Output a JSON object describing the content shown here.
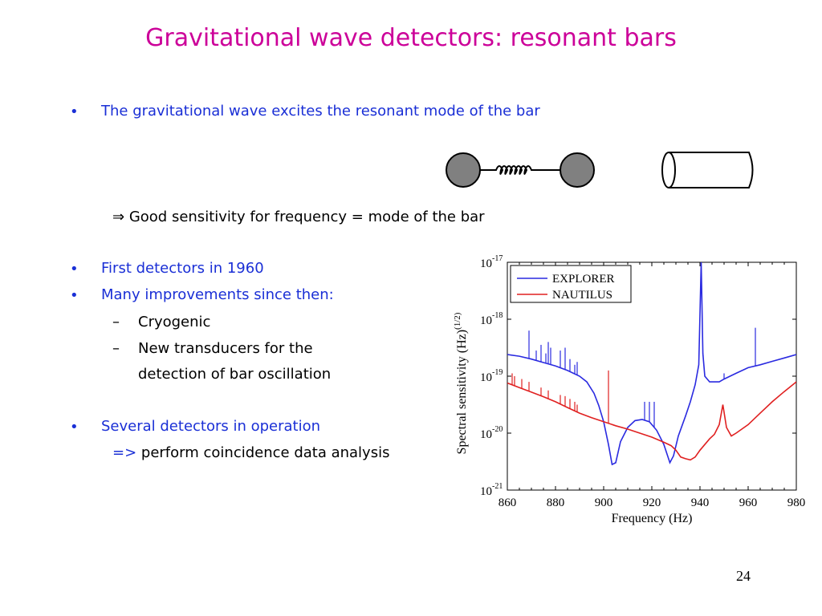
{
  "slide": {
    "title": "Gravitational wave detectors: resonant bars",
    "bullet_char": "•",
    "dash_char": "–",
    "implies_char": "⇒",
    "bullet1": "The gravitational wave excites the resonant mode of the bar",
    "implication": "Good sensitivity for frequency = mode of the bar",
    "bullet2": "First detectors in 1960",
    "bullet3": "Many improvements since then:",
    "sub1": "Cryogenic",
    "sub2_line1": "New transducers for the",
    "sub2_line2": "detection of bar oscillation",
    "bullet4": "Several detectors in operation",
    "arrow": "=>",
    "bullet4_sub": "perform coincidence data analysis",
    "page_number": "24"
  },
  "illustration": {
    "mass_spring": "two-masses-with-spring",
    "bar": "cylinder-bar",
    "mass_color": "#808080"
  },
  "chart_data": {
    "type": "line",
    "xlabel": "Frequency (Hz)",
    "ylabel": "Spectral sensitivity (Hz)",
    "ylabel_exp": "(1/2)",
    "x_ticks": [
      "860",
      "880",
      "900",
      "920",
      "940",
      "960",
      "980"
    ],
    "y_ticks": [
      {
        "base": "10",
        "exp": "-17"
      },
      {
        "base": "10",
        "exp": "-18"
      },
      {
        "base": "10",
        "exp": "-19"
      },
      {
        "base": "10",
        "exp": "-20"
      },
      {
        "base": "10",
        "exp": "-21"
      }
    ],
    "xlim": [
      860,
      980
    ],
    "ylim_log10": [
      -21,
      -17
    ],
    "scale_y": "log",
    "legend_position": "top-left",
    "series": [
      {
        "name": "EXPLORER",
        "color": "#2a2ae0",
        "points": [
          [
            860,
            -18.62
          ],
          [
            865,
            -18.65
          ],
          [
            870,
            -18.7
          ],
          [
            875,
            -18.76
          ],
          [
            880,
            -18.82
          ],
          [
            885,
            -18.9
          ],
          [
            890,
            -19.0
          ],
          [
            893,
            -19.1
          ],
          [
            896,
            -19.3
          ],
          [
            898,
            -19.52
          ],
          [
            900,
            -19.8
          ],
          [
            902,
            -20.2
          ],
          [
            903.5,
            -20.55
          ],
          [
            905,
            -20.52
          ],
          [
            907,
            -20.15
          ],
          [
            910,
            -19.9
          ],
          [
            913,
            -19.78
          ],
          [
            916,
            -19.76
          ],
          [
            919,
            -19.8
          ],
          [
            922,
            -19.95
          ],
          [
            925,
            -20.2
          ],
          [
            927.5,
            -20.52
          ],
          [
            929,
            -20.4
          ],
          [
            931,
            -20.05
          ],
          [
            934,
            -19.7
          ],
          [
            936,
            -19.45
          ],
          [
            938,
            -19.15
          ],
          [
            939.5,
            -18.8
          ],
          [
            940.5,
            -17.0
          ],
          [
            941.2,
            -18.6
          ],
          [
            942,
            -19.0
          ],
          [
            944,
            -19.1
          ],
          [
            946,
            -19.1
          ],
          [
            948,
            -19.1
          ],
          [
            950,
            -19.05
          ],
          [
            955,
            -18.95
          ],
          [
            960,
            -18.85
          ],
          [
            965,
            -18.8
          ],
          [
            970,
            -18.74
          ],
          [
            975,
            -18.68
          ],
          [
            980,
            -18.62
          ]
        ],
        "spikes": [
          [
            869,
            -18.2
          ],
          [
            872,
            -18.55
          ],
          [
            874,
            -18.45
          ],
          [
            876,
            -18.6
          ],
          [
            877,
            -18.4
          ],
          [
            878,
            -18.5
          ],
          [
            882,
            -18.55
          ],
          [
            884,
            -18.5
          ],
          [
            886,
            -18.7
          ],
          [
            888,
            -18.8
          ],
          [
            889,
            -18.75
          ],
          [
            917,
            -19.45
          ],
          [
            919,
            -19.45
          ],
          [
            921,
            -19.45
          ],
          [
            950,
            -18.95
          ],
          [
            963,
            -18.15
          ]
        ]
      },
      {
        "name": "NAUTILUS",
        "color": "#e02020",
        "points": [
          [
            860,
            -19.12
          ],
          [
            865,
            -19.2
          ],
          [
            870,
            -19.28
          ],
          [
            875,
            -19.36
          ],
          [
            880,
            -19.45
          ],
          [
            885,
            -19.55
          ],
          [
            890,
            -19.65
          ],
          [
            895,
            -19.73
          ],
          [
            900,
            -19.8
          ],
          [
            905,
            -19.87
          ],
          [
            910,
            -19.93
          ],
          [
            915,
            -20.0
          ],
          [
            920,
            -20.07
          ],
          [
            925,
            -20.16
          ],
          [
            928,
            -20.22
          ],
          [
            930,
            -20.3
          ],
          [
            932,
            -20.42
          ],
          [
            934,
            -20.45
          ],
          [
            936,
            -20.47
          ],
          [
            938,
            -20.42
          ],
          [
            940,
            -20.3
          ],
          [
            942,
            -20.2
          ],
          [
            944,
            -20.1
          ],
          [
            946,
            -20.02
          ],
          [
            948,
            -19.85
          ],
          [
            949.5,
            -19.5
          ],
          [
            951,
            -19.9
          ],
          [
            953,
            -20.05
          ],
          [
            955,
            -20.0
          ],
          [
            960,
            -19.85
          ],
          [
            965,
            -19.65
          ],
          [
            970,
            -19.45
          ],
          [
            975,
            -19.27
          ],
          [
            980,
            -19.1
          ]
        ],
        "spikes": [
          [
            862,
            -18.95
          ],
          [
            863,
            -19.0
          ],
          [
            866,
            -19.05
          ],
          [
            869,
            -19.1
          ],
          [
            874,
            -19.2
          ],
          [
            877,
            -19.25
          ],
          [
            882,
            -19.33
          ],
          [
            884,
            -19.35
          ],
          [
            886,
            -19.4
          ],
          [
            888,
            -19.45
          ],
          [
            889,
            -19.5
          ],
          [
            902,
            -18.9
          ]
        ]
      }
    ]
  }
}
